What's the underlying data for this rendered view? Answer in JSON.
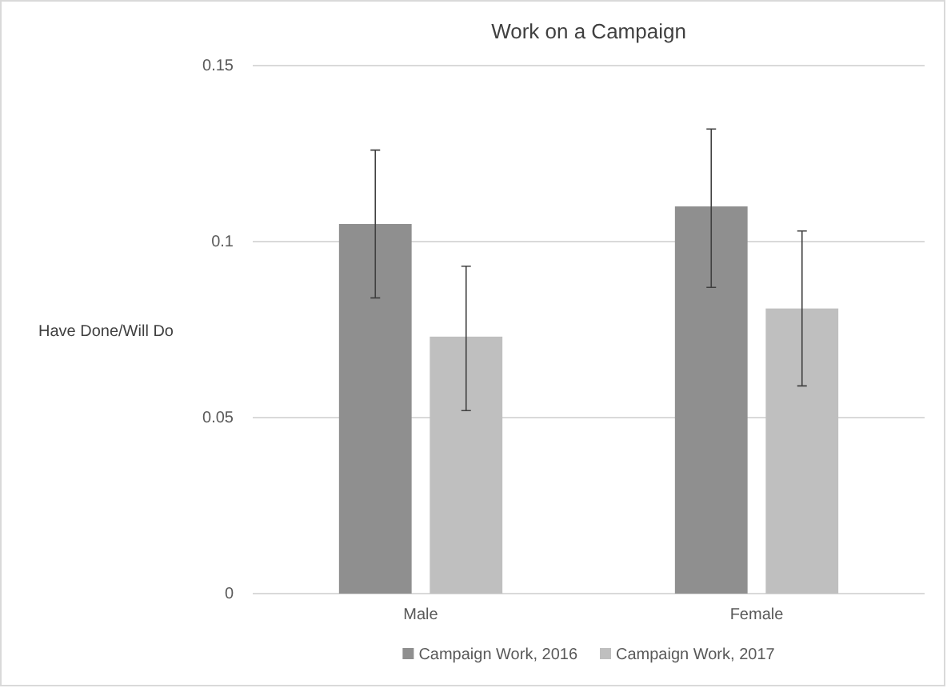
{
  "chart_data": {
    "type": "bar",
    "title": "Work on a Campaign",
    "ylabel": "Have Done/Will Do",
    "categories": [
      "Male",
      "Female"
    ],
    "series": [
      {
        "name": "Campaign Work, 2016",
        "color": "#8f8f8f",
        "values": [
          0.105,
          0.11
        ],
        "errors": [
          [
            0.084,
            0.126
          ],
          [
            0.087,
            0.132
          ]
        ]
      },
      {
        "name": "Campaign Work, 2017",
        "color": "#bfbfbf",
        "values": [
          0.073,
          0.081
        ],
        "errors": [
          [
            0.052,
            0.093
          ],
          [
            0.059,
            0.103
          ]
        ]
      }
    ],
    "ylim": [
      0,
      0.15
    ],
    "yticks": [
      0,
      0.05,
      0.1,
      0.15
    ],
    "grid": "y",
    "legend": "bottom"
  }
}
